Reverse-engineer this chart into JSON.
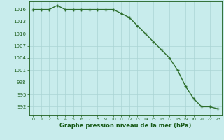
{
  "x": [
    0,
    1,
    2,
    3,
    4,
    5,
    6,
    7,
    8,
    9,
    10,
    11,
    12,
    13,
    14,
    15,
    16,
    17,
    18,
    19,
    20,
    21,
    22,
    23
  ],
  "y": [
    1016,
    1016,
    1016,
    1017,
    1016,
    1016,
    1016,
    1016,
    1016,
    1016,
    1016,
    1015,
    1014,
    1012,
    1010,
    1008,
    1006,
    1004,
    1001,
    997,
    994,
    992,
    992,
    991.5
  ],
  "line_color": "#2d6e2d",
  "marker_color": "#2d6e2d",
  "bg_color": "#c8ecec",
  "grid_color": "#aad4d4",
  "xlabel": "Graphe pression niveau de la mer (hPa)",
  "xlabel_color": "#1a5c1a",
  "tick_color": "#1a5c1a",
  "ylim_min": 990,
  "ylim_max": 1018,
  "xlim_min": -0.5,
  "xlim_max": 23.5,
  "yticks": [
    992,
    995,
    998,
    1001,
    1004,
    1007,
    1010,
    1013,
    1016
  ],
  "xticks": [
    0,
    1,
    2,
    3,
    4,
    5,
    6,
    7,
    8,
    9,
    10,
    11,
    12,
    13,
    14,
    15,
    16,
    17,
    18,
    19,
    20,
    21,
    22,
    23
  ]
}
